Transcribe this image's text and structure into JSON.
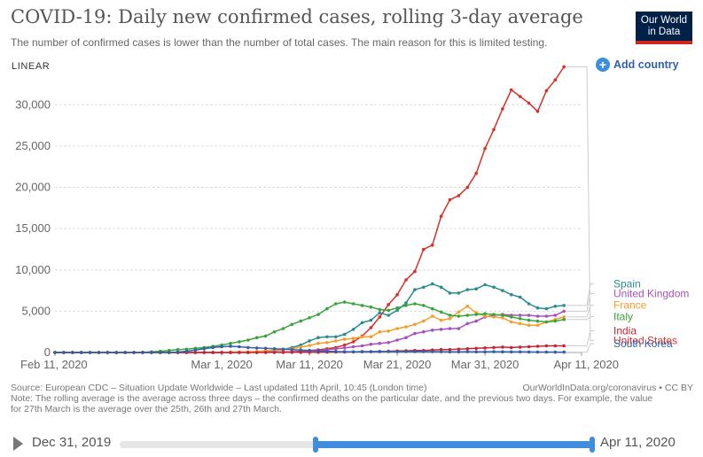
{
  "header": {
    "title": "COVID-19: Daily new confirmed cases, rolling 3-day average",
    "subtitle": "The number of confirmed cases is lower than the number of total cases. The main reason for this is limited testing.",
    "logo_line1": "Our World",
    "logo_line2": "in Data",
    "logo_color": "#002147"
  },
  "controls": {
    "scale_toggle": "LINEAR",
    "add_country": "Add country",
    "add_icon": "plus-circle-icon"
  },
  "chart_data": {
    "type": "line",
    "x_start": "2020-02-11",
    "x_end": "2020-04-11",
    "xticks": [
      {
        "day": 0,
        "label": "Feb 11, 2020"
      },
      {
        "day": 19,
        "label": "Mar 1, 2020"
      },
      {
        "day": 29,
        "label": "Mar 11, 2020"
      },
      {
        "day": 39,
        "label": "Mar 21, 2020"
      },
      {
        "day": 49,
        "label": "Mar 31, 2020"
      },
      {
        "day": 60,
        "label": "Apr 11, 2020"
      }
    ],
    "ylim": [
      0,
      34000
    ],
    "yticks": [
      {
        "value": 0,
        "label": "0"
      },
      {
        "value": 5000,
        "label": "5,000"
      },
      {
        "value": 10000,
        "label": "10,000"
      },
      {
        "value": 15000,
        "label": "15,000"
      },
      {
        "value": 20000,
        "label": "20,000"
      },
      {
        "value": 25000,
        "label": "25,000"
      },
      {
        "value": 30000,
        "label": "30,000"
      }
    ],
    "grid": true,
    "series": [
      {
        "name": "United States",
        "color": "#d73027",
        "label_y": 1030,
        "values": [
          0,
          0,
          0,
          0,
          0,
          0,
          0,
          0,
          0,
          0,
          0,
          0,
          0,
          0,
          0,
          0,
          2,
          3,
          5,
          8,
          10,
          12,
          15,
          20,
          30,
          50,
          70,
          100,
          150,
          250,
          320,
          450,
          600,
          900,
          1300,
          2000,
          3000,
          4300,
          5800,
          7000,
          8800,
          9800,
          12500,
          13000,
          16500,
          18500,
          19000,
          20000,
          21700,
          24700,
          27000,
          29500,
          31800,
          31000,
          30200,
          29200,
          31700,
          33000,
          34600
        ]
      },
      {
        "name": "Spain",
        "color": "#2a8c8c",
        "label_y": 7900,
        "values": [
          0,
          0,
          0,
          0,
          0,
          0,
          0,
          0,
          0,
          0,
          0,
          0,
          0,
          0,
          0,
          0,
          0,
          0,
          0,
          20,
          30,
          40,
          60,
          90,
          150,
          250,
          350,
          600,
          900,
          1400,
          1800,
          1900,
          1900,
          2200,
          2800,
          3600,
          3900,
          4800,
          4500,
          5100,
          6000,
          7600,
          7900,
          8300,
          7900,
          7200,
          7200,
          7600,
          7700,
          8200,
          7900,
          7500,
          7000,
          6700,
          5900,
          5400,
          5300,
          5600,
          5700
        ]
      },
      {
        "name": "United Kingdom",
        "color": "#a652ba",
        "label_y": 6700,
        "values": [
          0,
          0,
          0,
          0,
          0,
          0,
          0,
          0,
          0,
          0,
          0,
          0,
          0,
          0,
          0,
          0,
          0,
          0,
          0,
          2,
          5,
          8,
          10,
          20,
          30,
          40,
          50,
          80,
          100,
          180,
          250,
          330,
          450,
          550,
          700,
          800,
          1000,
          1100,
          1200,
          1500,
          1800,
          2300,
          2500,
          2700,
          2800,
          2900,
          2900,
          3500,
          3800,
          4300,
          4500,
          4600,
          4500,
          4500,
          4500,
          4400,
          4400,
          4500,
          5000
        ]
      },
      {
        "name": "France",
        "color": "#f89c2c",
        "label_y": 5300,
        "values": [
          0,
          0,
          0,
          0,
          0,
          0,
          0,
          0,
          0,
          0,
          0,
          0,
          0,
          0,
          0,
          0,
          0,
          2,
          5,
          20,
          40,
          60,
          90,
          130,
          200,
          280,
          350,
          450,
          650,
          850,
          1100,
          1200,
          1400,
          1600,
          1700,
          1900,
          1900,
          2500,
          2600,
          2900,
          3100,
          3400,
          3800,
          4400,
          3900,
          4100,
          4900,
          5600,
          4800,
          4400,
          4300,
          4200,
          3700,
          3500,
          3300,
          3300,
          3700,
          4000,
          4300
        ]
      },
      {
        "name": "Italy",
        "color": "#39a43a",
        "label_y": 3900,
        "values": [
          0,
          0,
          0,
          0,
          0,
          0,
          0,
          0,
          0,
          0,
          30,
          70,
          150,
          250,
          350,
          400,
          500,
          600,
          750,
          900,
          1100,
          1300,
          1500,
          1800,
          2000,
          2500,
          2900,
          3400,
          3800,
          4200,
          4600,
          5300,
          5900,
          6100,
          5900,
          5700,
          5500,
          5200,
          5100,
          5400,
          5700,
          5900,
          5700,
          5300,
          4900,
          4500,
          4400,
          4500,
          4600,
          4700,
          4600,
          4500,
          4300,
          4100,
          3900,
          3800,
          3700,
          3800,
          4000
        ]
      },
      {
        "name": "India",
        "color": "#c82335",
        "label_y": 2200,
        "values": [
          0,
          0,
          0,
          0,
          0,
          0,
          0,
          0,
          0,
          0,
          0,
          0,
          0,
          0,
          0,
          0,
          0,
          0,
          0,
          0,
          0,
          0,
          2,
          5,
          10,
          10,
          15,
          20,
          20,
          25,
          30,
          40,
          50,
          60,
          80,
          100,
          100,
          120,
          150,
          180,
          200,
          250,
          250,
          300,
          350,
          350,
          400,
          450,
          500,
          550,
          600,
          650,
          600,
          650,
          700,
          750,
          800,
          800,
          800
        ]
      },
      {
        "name": "South Korea",
        "color": "#3360a9",
        "label_y": 650,
        "values": [
          0,
          0,
          0,
          0,
          0,
          0,
          0,
          0,
          0,
          0,
          0,
          0,
          0,
          0,
          50,
          150,
          300,
          450,
          600,
          700,
          750,
          700,
          600,
          550,
          500,
          450,
          400,
          350,
          300,
          250,
          200,
          150,
          120,
          100,
          90,
          100,
          110,
          120,
          110,
          100,
          110,
          110,
          110,
          105,
          100,
          90,
          90,
          95,
          90,
          90,
          95,
          90,
          80,
          70,
          60,
          50,
          50,
          40,
          40
        ]
      }
    ]
  },
  "footer": {
    "source": "Source: European CDC – Situation Update Worldwide – Last updated 11th April, 10:45 (London time)",
    "credit": "OurWorldInData.org/coronavirus • CC BY",
    "note": "Note: The rolling average is the average across three days – the confirmed deaths on the particular date, and the previous two days. For example, the value for 27th March is the average over the 25th, 26th and 27th March."
  },
  "timeline": {
    "start_label": "Dec 31, 2019",
    "end_label": "Apr 11, 2020",
    "play_icon": "play-icon",
    "range_start_fraction": 0.415,
    "range_end_fraction": 1.0
  }
}
